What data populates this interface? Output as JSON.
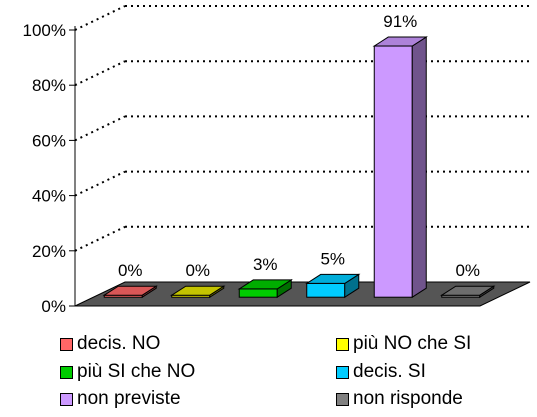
{
  "chart_data": {
    "type": "bar",
    "style": "3d",
    "categories": [
      "decis. NO",
      "più NO che SI",
      "più SI che NO",
      "decis. SI",
      "non previste",
      "non risponde"
    ],
    "values": [
      0,
      0,
      3,
      5,
      91,
      0
    ],
    "data_labels": [
      "0%",
      "0%",
      "3%",
      "5%",
      "91%",
      "0%"
    ],
    "colors": [
      "#ff6666",
      "#e6e600",
      "#00cc00",
      "#00ccff",
      "#cc99ff",
      "#808080"
    ],
    "ylim": [
      0,
      100
    ],
    "yticks": [
      "0%",
      "20%",
      "40%",
      "60%",
      "80%",
      "100%"
    ],
    "grid": true,
    "legend_position": "bottom"
  },
  "legend": [
    {
      "label": "decis. NO",
      "color": "#ff6666"
    },
    {
      "label": "più NO che SI",
      "color": "#ffff00"
    },
    {
      "label": "più SI che NO",
      "color": "#00cc00"
    },
    {
      "label": "decis. SI",
      "color": "#00ccff"
    },
    {
      "label": "non previste",
      "color": "#cc99ff"
    },
    {
      "label": "non risponde",
      "color": "#808080"
    }
  ]
}
